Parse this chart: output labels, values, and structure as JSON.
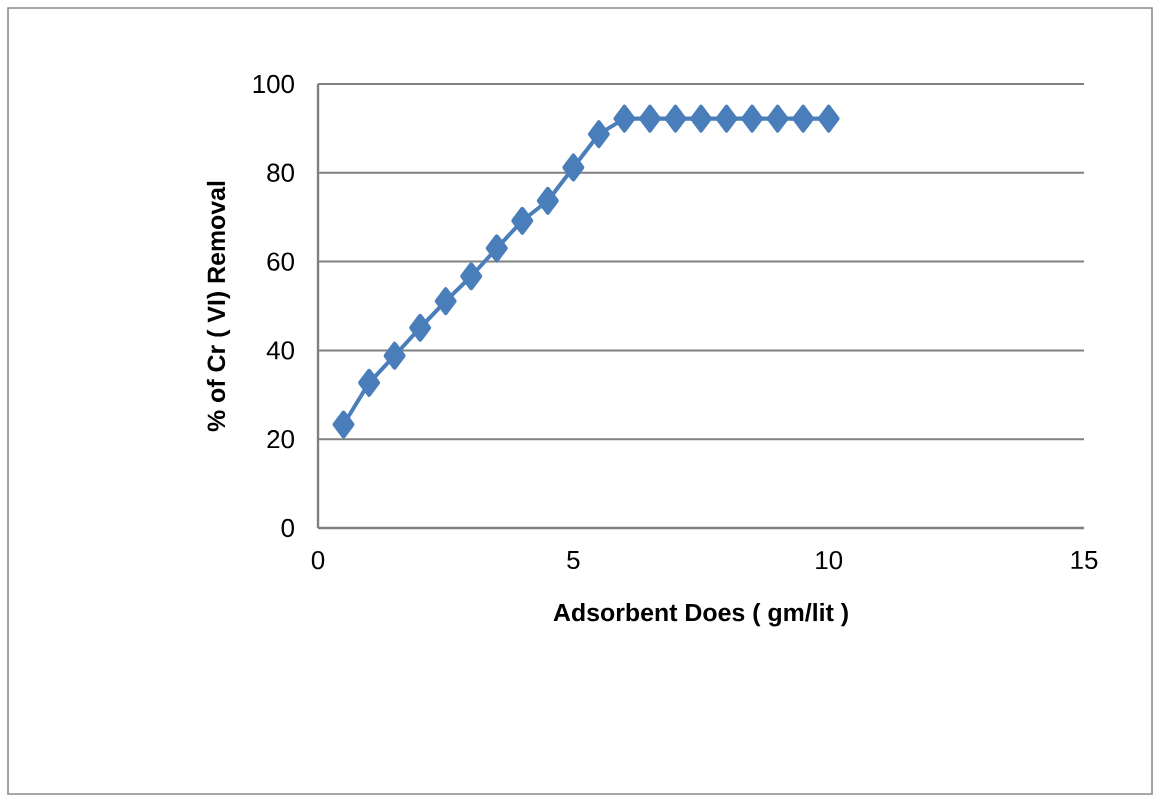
{
  "chart_data": {
    "type": "line",
    "xlabel": "Adsorbent Does ( gm/lit )",
    "ylabel": "% of Cr ( VI) Removal",
    "x": [
      0.5,
      1,
      1.5,
      2,
      2.5,
      3,
      3.5,
      4,
      4.5,
      5,
      5.5,
      6,
      6.5,
      7,
      7.5,
      8,
      8.5,
      9,
      9.5,
      10
    ],
    "series": [
      {
        "color": "#4a7ebb",
        "values": [
          23.3,
          32.7,
          38.8,
          45.1,
          51.1,
          56.7,
          63,
          69.2,
          73.7,
          81.2,
          88.7,
          92.2,
          92.2,
          92.2,
          92.2,
          92.2,
          92.2,
          92.2,
          92.2,
          92.2
        ]
      }
    ],
    "xlim": [
      0,
      15
    ],
    "xticks": [
      0,
      5,
      10,
      15
    ],
    "ylim": [
      0,
      100
    ],
    "yticks": [
      0,
      20,
      40,
      60,
      80,
      100
    ],
    "grid": "y",
    "marker": "diamond",
    "line_style": "solid"
  }
}
